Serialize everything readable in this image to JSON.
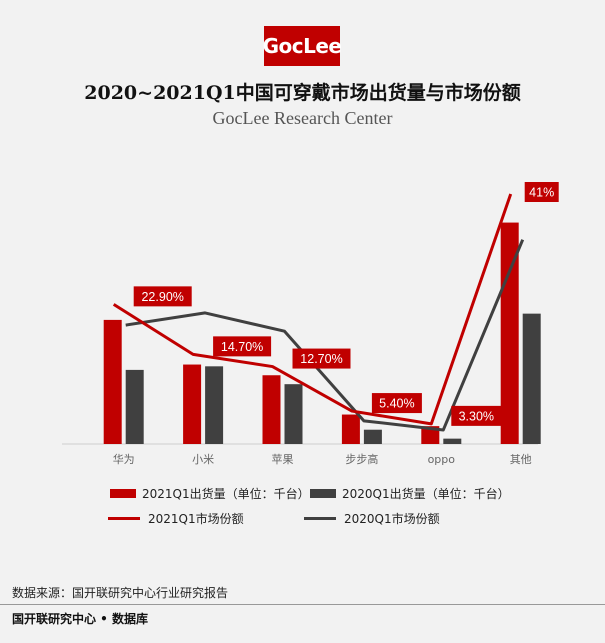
{
  "logo_text": "GocLee",
  "title": "2020~2021Q1中国可穿戴市场出货量与市场份额",
  "subtitle": "GocLee Research Center",
  "chart_data": {
    "type": "bar",
    "categories": [
      "华为",
      "小米",
      "苹果",
      "步步高",
      "oppo",
      "其他"
    ],
    "series": [
      {
        "name": "2021Q1出货量（单位：千台）",
        "kind": "bar",
        "color": "#c00000",
        "values": [
          139,
          89,
          77,
          33,
          20,
          248
        ]
      },
      {
        "name": "2020Q1出货量（单位：千台）",
        "kind": "bar",
        "color": "#404040",
        "values": [
          83,
          87,
          67,
          16,
          6,
          146
        ]
      },
      {
        "name": "2021Q1市场份额",
        "kind": "line",
        "color": "#c00000",
        "values": [
          22.9,
          14.7,
          12.7,
          5.4,
          3.3,
          41
        ]
      },
      {
        "name": "2020Q1市场份额",
        "kind": "line",
        "color": "#404040",
        "values": [
          19.5,
          21.5,
          18.5,
          3.8,
          2.3,
          33.5
        ]
      }
    ],
    "data_labels": [
      "22.90%",
      "14.70%",
      "12.70%",
      "5.40%",
      "3.30%",
      "41%"
    ],
    "bar_ylim": [
      0,
      280
    ],
    "line_ylim": [
      0,
      48
    ],
    "label_color": "#c00000"
  },
  "legend": [
    {
      "label": "2021Q1出货量（单位：千台）",
      "type": "rect",
      "color": "#c00000"
    },
    {
      "label": "2020Q1出货量（单位：千台）",
      "type": "rect",
      "color": "#404040"
    },
    {
      "label": "2021Q1市场份额",
      "type": "line",
      "color": "#c00000"
    },
    {
      "label": "2020Q1市场份额",
      "type": "line",
      "color": "#404040"
    }
  ],
  "source": "数据来源：国开联研究中心行业研究报告",
  "footer": "国开联研究中心 • 数据库"
}
